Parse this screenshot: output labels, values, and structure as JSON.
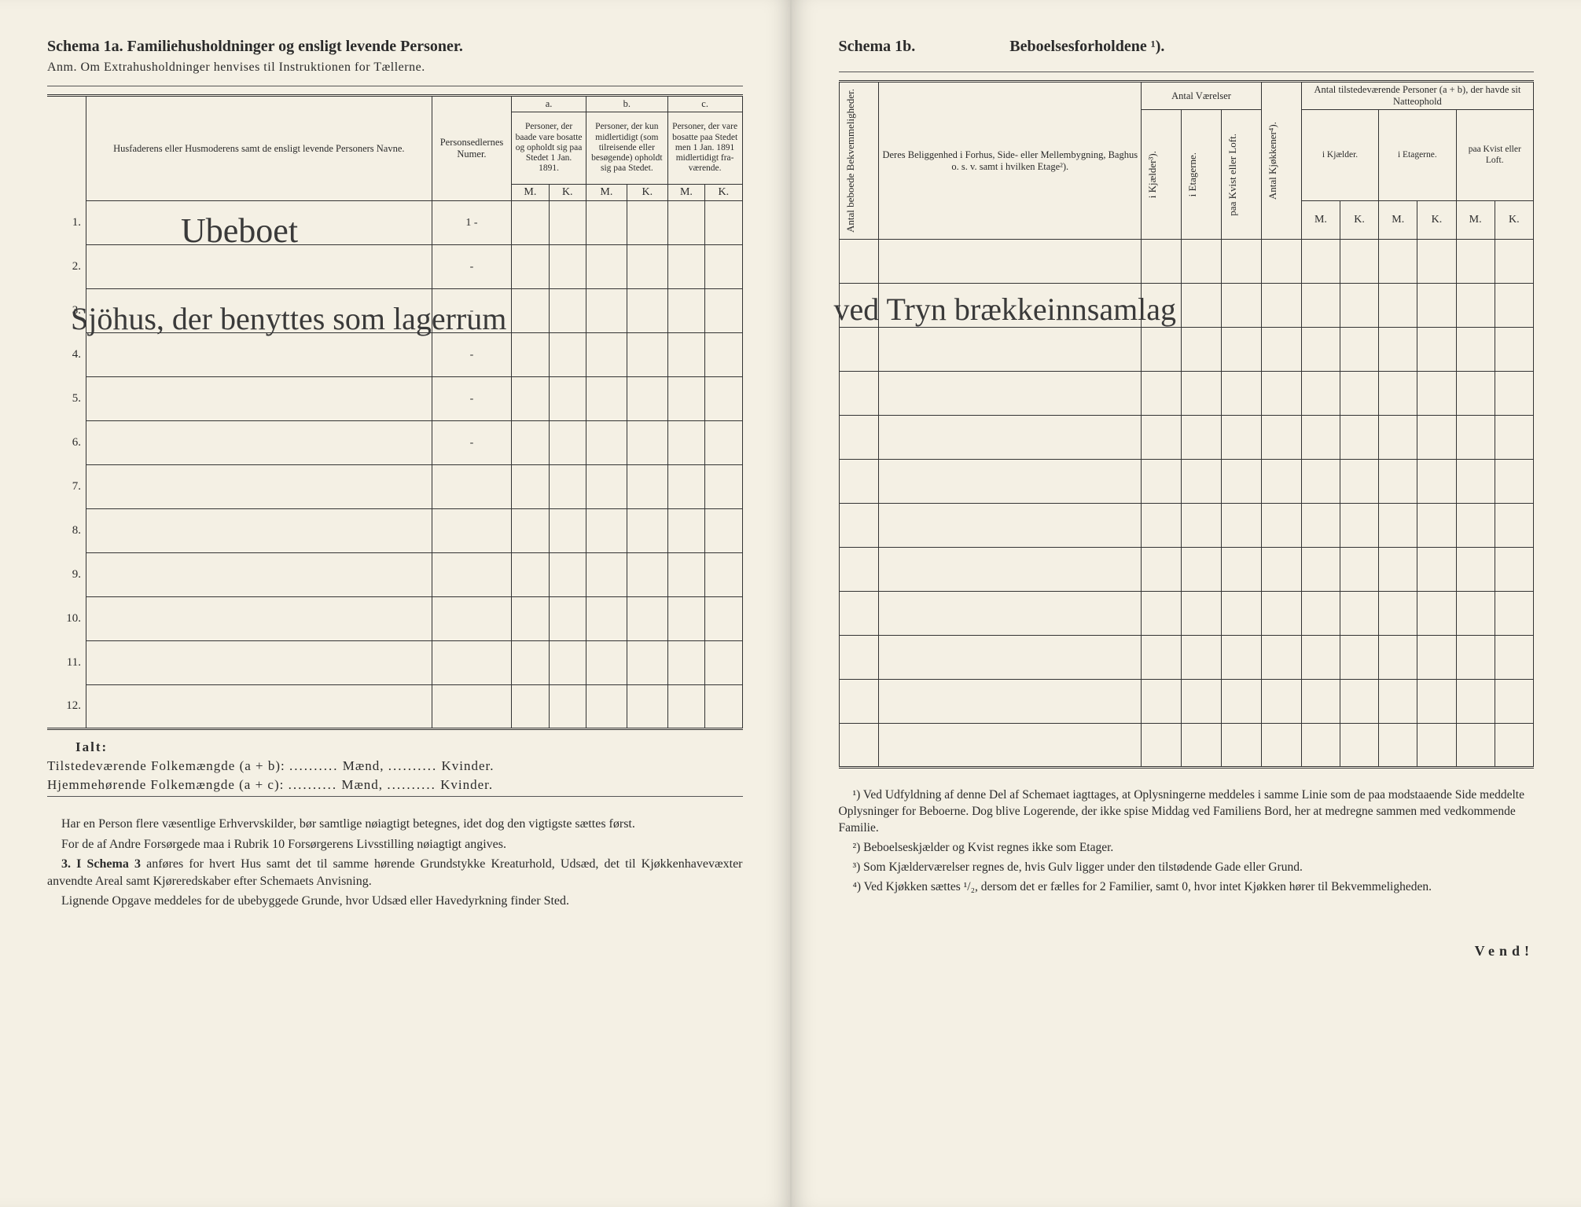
{
  "left": {
    "heading": "Schema 1a.  Familiehusholdninger og ensligt levende Personer.",
    "anm": "Anm. Om Extrahusholdninger henvises til Instruktionen for Tællerne.",
    "cols": {
      "name": "Husfaderens eller Husmode­rens samt de ensligt levende Personers Navne.",
      "numer": "Person­sedler­nes Numer.",
      "a_label": "a.",
      "a_text": "Personer, der baade vare bo­satte og opholdt sig paa Stedet 1 Jan. 1891.",
      "b_label": "b.",
      "b_text": "Personer, der kun midler­tidigt (som tilreisende eller besøgende) opholdt sig paa Stedet.",
      "c_label": "c.",
      "c_text": "Personer, der vare bosatte paa Stedet men 1 Jan. 1891 midler­tidigt fra­værende.",
      "M": "M.",
      "K": "K."
    },
    "rows": [
      "1.",
      "2.",
      "3.",
      "4.",
      "5.",
      "6.",
      "7.",
      "8.",
      "9.",
      "10.",
      "11.",
      "12."
    ],
    "numer_vals": [
      "1 -",
      "-",
      "-",
      "-",
      "-",
      "-",
      "",
      "",
      "",
      "",
      "",
      ""
    ],
    "handwriting_row2": "Ubeboet",
    "handwriting_row4_left": "Sjöhus, der benyttes som lagerrum",
    "ialt_label": "Ialt:",
    "ialt_line1_a": "Tilstedeværende Folkemængde (a + b): ",
    "ialt_line2_a": "Hjemmehørende Folkemængde (a + c): ",
    "dots": "..........",
    "maend": " Mænd, ",
    "kvinder": " Kvinder.",
    "bottom_p1": "Har en Person flere væsentlige Erhvervskilder, bør samtlige nøiagtigt betegnes, idet dog den vigtigste sættes først.",
    "bottom_p2": "For de af Andre Forsørgede maa i Rubrik 10 Forsørgerens Livsstilling nøiagtigt angives.",
    "bottom_p3_a": "3. I Schema 3 ",
    "bottom_p3_b": "anføres for hvert Hus samt det til samme hørende Grund­stykke Kreaturhold, Udsæd, det til Kjøkkenhavevæxter anvendte Areal samt Kjøreredskaber efter Schemaets Anvisning.",
    "bottom_p4": "Lignende Opgave meddeles for de ubebyggede Grunde, hvor Udsæd eller Havedyrkning finder Sted."
  },
  "right": {
    "heading": "Schema 1b.",
    "heading2": "Beboelsesforholdene ¹).",
    "cols": {
      "bekv": "Antal beboede Bekvemmeligheder.",
      "belig": "Deres Beliggenhed i Forhus, Side- eller Mellembygning, Baghus o. s. v. samt i hvilken Etage²).",
      "antal_vaer": "Antal Værelser",
      "kjaelder": "i Kjælder³).",
      "etag": "i Etagerne.",
      "kvist": "paa Kvist eller Loft.",
      "kjok": "Antal Kjøkkener⁴).",
      "tilstede": "Antal tilstedeværende Personer (a + b), der havde sit Natteophold",
      "i_kjael": "i Kjæl­der.",
      "i_etag": "i Etagerne.",
      "paa_kvist": "paa Kvist eller Loft.",
      "M": "M.",
      "K": "K."
    },
    "handwriting_row4_right": "ved Tryn brækkeinnsamlag",
    "fn1": "¹) Ved Udfyldning af denne Del af Schemaet iagttages, at Oplysningerne meddeles i samme Linie som de paa modstaaende Side meddelte Oplysninger for Beboerne. Dog blive Logerende, der ikke spise Middag ved Familiens Bord, her at medregne sammen med vedkommende Familie.",
    "fn2": "²) Beboelseskjælder og Kvist regnes ikke som Etager.",
    "fn3": "³) Som Kjælderværelser regnes de, hvis Gulv ligger under den tilstødende Gade eller Grund.",
    "fn4": "⁴) Ved Kjøkken sættes ¹/₂, dersom det er fælles for 2 Familier, samt 0, hvor intet Kjøkken hører til Bekvemmeligheden.",
    "vend": "Vend!"
  }
}
